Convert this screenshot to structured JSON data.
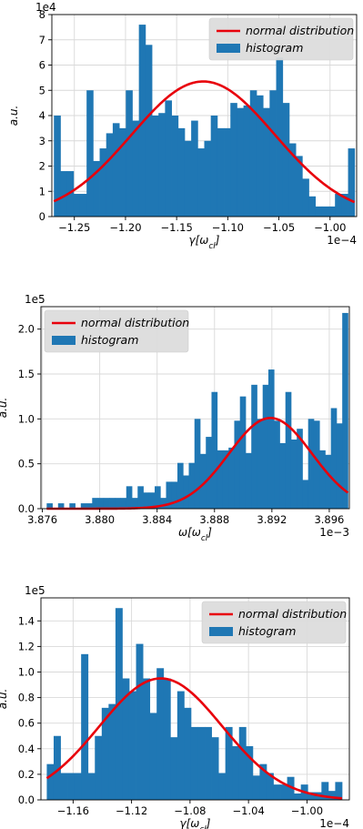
{
  "chart_data": [
    {
      "type": "bar",
      "style": "histogram",
      "xlabel": "γ[ω_cl]",
      "ylabel": "a.u.",
      "x_offset_label": "1e−4",
      "y_offset_label": "1e4",
      "xlim": [
        -1.272,
        -0.974
      ],
      "ylim": [
        0,
        8
      ],
      "xticks": [
        -1.25,
        -1.2,
        -1.15,
        -1.1,
        -1.05,
        -1.0
      ],
      "xtick_labels": [
        "−1.25",
        "−1.20",
        "−1.15",
        "−1.10",
        "−1.05",
        "−1.00"
      ],
      "yticks": [
        0,
        1,
        2,
        3,
        4,
        5,
        6,
        7,
        8
      ],
      "ytick_labels": [
        "0",
        "1",
        "2",
        "3",
        "4",
        "5",
        "6",
        "7",
        "8"
      ],
      "grid": true,
      "legend_position": "top-right",
      "bin_range": [
        -1.27,
        -0.976
      ],
      "values": [
        4.0,
        1.8,
        1.8,
        0.9,
        0.9,
        5.0,
        2.2,
        2.7,
        3.3,
        3.7,
        3.5,
        5.0,
        3.8,
        7.6,
        6.8,
        4.0,
        4.1,
        4.6,
        4.0,
        3.5,
        3.0,
        3.8,
        2.7,
        3.0,
        4.0,
        3.5,
        3.5,
        4.5,
        4.3,
        4.4,
        5.0,
        4.8,
        4.3,
        5.0,
        6.3,
        4.5,
        2.9,
        2.4,
        1.5,
        0.8,
        0.4,
        0.4,
        0.4,
        0.9,
        0.9,
        2.7
      ],
      "series": [
        {
          "name": "normal distribution",
          "type": "line",
          "mean": -1.124,
          "sigma": 0.07,
          "peak": 5.35,
          "color": "#e8000b"
        },
        {
          "name": "histogram",
          "type": "bar",
          "color": "#1f77b4"
        }
      ]
    },
    {
      "type": "bar",
      "style": "histogram",
      "xlabel": "ω[ω_cl]",
      "ylabel": "a.u.",
      "x_offset_label": "1e−3",
      "y_offset_label": "1e5",
      "xlim": [
        3.8759,
        3.8974
      ],
      "ylim": [
        0,
        2.25
      ],
      "xticks": [
        3.876,
        3.88,
        3.884,
        3.888,
        3.892,
        3.896
      ],
      "xtick_labels": [
        "3.876",
        "3.880",
        "3.884",
        "3.888",
        "3.892",
        "3.896"
      ],
      "yticks": [
        0,
        0.5,
        1.0,
        1.5,
        2.0
      ],
      "ytick_labels": [
        "0.0",
        "0.5",
        "1.0",
        "1.5",
        "2.0"
      ],
      "grid": true,
      "legend_position": "top-left",
      "bin_range": [
        3.8763,
        3.8973
      ],
      "values": [
        0.06,
        0.0,
        0.06,
        0.0,
        0.06,
        0.0,
        0.06,
        0.06,
        0.12,
        0.12,
        0.12,
        0.12,
        0.12,
        0.12,
        0.25,
        0.12,
        0.25,
        0.18,
        0.18,
        0.25,
        0.12,
        0.3,
        0.3,
        0.51,
        0.37,
        0.51,
        1.0,
        0.61,
        0.8,
        1.3,
        0.65,
        0.65,
        0.68,
        0.98,
        1.25,
        0.62,
        1.38,
        1.0,
        1.38,
        1.55,
        0.98,
        0.73,
        1.3,
        0.77,
        0.89,
        0.32,
        1.0,
        0.98,
        0.65,
        0.6,
        1.12,
        0.95,
        2.18
      ],
      "series": [
        {
          "name": "normal distribution",
          "type": "line",
          "mean": 3.8919,
          "sigma": 0.0029,
          "peak": 1.01,
          "color": "#e8000b"
        },
        {
          "name": "histogram",
          "type": "bar",
          "color": "#1f77b4"
        }
      ]
    },
    {
      "type": "bar",
      "style": "histogram",
      "xlabel": "γ[ω_cl]",
      "ylabel": "a.u.",
      "x_offset_label": "1e−4",
      "y_offset_label": "1e5",
      "xlim": [
        -1.182,
        -0.971
      ],
      "ylim": [
        0,
        1.58
      ],
      "xticks": [
        -1.16,
        -1.12,
        -1.08,
        -1.04,
        -1.0
      ],
      "xtick_labels": [
        "−1.16",
        "−1.12",
        "−1.08",
        "−1.04",
        "−1.00"
      ],
      "yticks": [
        0,
        0.2,
        0.4,
        0.6,
        0.8,
        1.0,
        1.2,
        1.4
      ],
      "ytick_labels": [
        "0.0",
        "0.2",
        "0.4",
        "0.6",
        "0.8",
        "1.0",
        "1.2",
        "1.4"
      ],
      "grid": true,
      "legend_position": "top-right",
      "bin_range": [
        -1.178,
        -0.976
      ],
      "values": [
        0.28,
        0.5,
        0.21,
        0.21,
        0.21,
        1.14,
        0.21,
        0.5,
        0.72,
        0.75,
        1.5,
        0.95,
        0.85,
        1.22,
        0.95,
        0.68,
        1.03,
        0.95,
        0.49,
        0.85,
        0.72,
        0.57,
        0.57,
        0.57,
        0.49,
        0.21,
        0.57,
        0.42,
        0.57,
        0.42,
        0.19,
        0.28,
        0.21,
        0.12,
        0.12,
        0.18,
        0.05,
        0.12,
        0.06,
        0.06,
        0.14,
        0.07,
        0.14
      ],
      "series": [
        {
          "name": "normal distribution",
          "type": "line",
          "mean": -1.1,
          "sigma": 0.042,
          "peak": 0.95,
          "color": "#e8000b"
        },
        {
          "name": "histogram",
          "type": "bar",
          "color": "#1f77b4"
        }
      ]
    }
  ]
}
